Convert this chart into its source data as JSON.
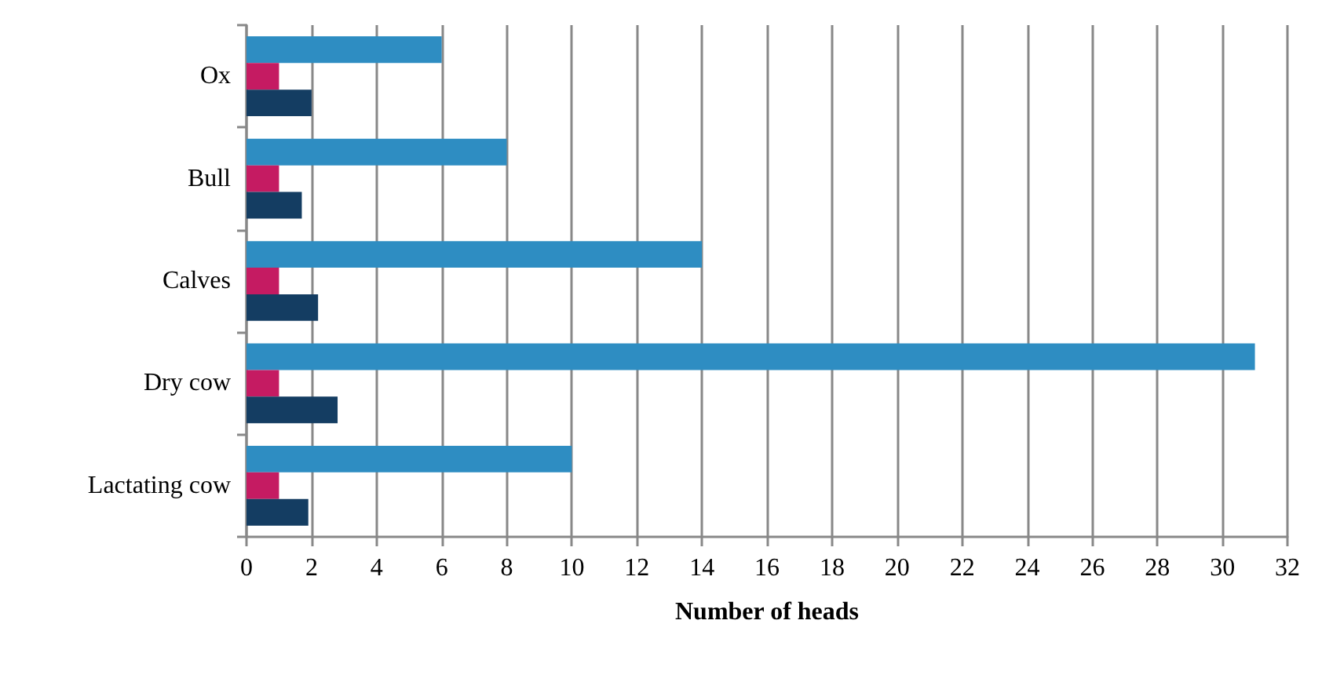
{
  "chart_data": {
    "type": "bar",
    "orientation": "horizontal",
    "xlabel": "Number of heads",
    "categories": [
      "Ox",
      "Bull",
      "Calves",
      "Dry cow",
      "Lactating cow"
    ],
    "series": [
      {
        "color": "#2e8dc2",
        "values": [
          6,
          8,
          14,
          31,
          10
        ]
      },
      {
        "color": "#c51b62",
        "values": [
          1,
          1,
          1,
          1,
          1
        ]
      },
      {
        "color": "#143d62",
        "values": [
          2,
          1.7,
          2.2,
          2.8,
          1.9
        ]
      }
    ],
    "xlim": [
      0,
      32
    ],
    "xticks": [
      0,
      2,
      4,
      6,
      8,
      10,
      12,
      14,
      16,
      18,
      20,
      22,
      24,
      26,
      28,
      30,
      32
    ],
    "grid": "x"
  }
}
